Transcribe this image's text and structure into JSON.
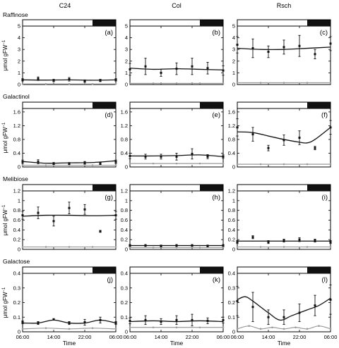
{
  "figure": {
    "columns": [
      "C24",
      "Col",
      "Rsch"
    ],
    "x_label": "Time",
    "y_label_main": "μmol gFW",
    "y_label_sup": "−1",
    "x_ticks": [
      "06:00",
      "14:00",
      "22:00",
      "06:00"
    ],
    "rows": [
      {
        "name": "Raffinose",
        "yticks": [
          "0",
          "1",
          "2",
          "3",
          "4",
          "5"
        ],
        "ylim": [
          0,
          5
        ]
      },
      {
        "name": "Galactinol",
        "yticks": [
          "0",
          "0.4",
          "0.8",
          "1.2",
          "1.6"
        ],
        "ylim": [
          0,
          1.7
        ]
      },
      {
        "name": "Melibiose",
        "yticks": [
          "0",
          "0.2",
          "0.4",
          "0.6",
          "0.8",
          "1",
          "1.2"
        ],
        "ylim": [
          0,
          1.2
        ]
      },
      {
        "name": "Galactose",
        "yticks": [
          "0",
          "0.1",
          "0.2",
          "0.3",
          "0.4"
        ],
        "ylim": [
          0,
          0.4
        ]
      }
    ],
    "colors": {
      "black_series": "#111111",
      "grey_series": "#9a9a9a",
      "dark_bar": "#111111"
    }
  },
  "chart_data": [
    {
      "type": "line",
      "panel": "(a)",
      "row": "Raffinose",
      "column": "C24",
      "x_unit": "hours since 06:00",
      "xlim": [
        0,
        24
      ],
      "ylim": [
        0,
        5
      ],
      "dark_period": [
        18,
        24
      ],
      "points": {
        "x": [
          0,
          4,
          8,
          12,
          16,
          20,
          24
        ],
        "y": [
          0.4,
          0.5,
          0.35,
          0.45,
          0.3,
          0.35,
          0.4
        ],
        "err": [
          0.1,
          0.15,
          0.1,
          0.15,
          0.1,
          0.1,
          0.1
        ]
      },
      "fit": {
        "x": [
          0,
          6,
          12,
          18,
          24
        ],
        "y": [
          0.4,
          0.38,
          0.4,
          0.37,
          0.4
        ]
      },
      "grey": {
        "x": [
          0,
          6,
          12,
          18,
          24
        ],
        "y": [
          0.05,
          0.05,
          0.05,
          0.05,
          0.05
        ]
      }
    },
    {
      "type": "line",
      "panel": "(b)",
      "row": "Raffinose",
      "column": "Col",
      "x_unit": "hours since 06:00",
      "xlim": [
        0,
        24
      ],
      "ylim": [
        0,
        5
      ],
      "dark_period": [
        18,
        24
      ],
      "points": {
        "x": [
          0,
          4,
          8,
          12,
          16,
          20,
          24
        ],
        "y": [
          1.3,
          1.55,
          1.0,
          1.35,
          1.55,
          1.4,
          1.2
        ],
        "err": [
          0.5,
          0.7,
          0.3,
          0.5,
          0.7,
          0.5,
          0.4
        ]
      },
      "fit": {
        "x": [
          0,
          6,
          12,
          18,
          24
        ],
        "y": [
          1.4,
          1.3,
          1.35,
          1.3,
          1.25
        ]
      },
      "grey": {
        "x": [
          0,
          6,
          12,
          18,
          24
        ],
        "y": [
          0.1,
          0.1,
          0.1,
          0.1,
          0.1
        ]
      }
    },
    {
      "type": "line",
      "panel": "(c)",
      "row": "Raffinose",
      "column": "Rsch",
      "x_unit": "hours since 06:00",
      "xlim": [
        0,
        24
      ],
      "ylim": [
        0,
        5
      ],
      "dark_period": [
        18,
        24
      ],
      "points": {
        "x": [
          0,
          4,
          8,
          12,
          16,
          20,
          24
        ],
        "y": [
          3.4,
          3.1,
          2.8,
          3.2,
          3.3,
          2.6,
          3.5
        ],
        "err": [
          0.7,
          0.8,
          0.5,
          0.6,
          0.9,
          0.4,
          0.6
        ]
      },
      "fit": {
        "x": [
          0,
          6,
          12,
          18,
          24
        ],
        "y": [
          3.1,
          3.0,
          3.0,
          3.1,
          3.2
        ]
      },
      "grey": {
        "x": [
          0,
          6,
          12,
          18,
          24
        ],
        "y": [
          0.15,
          0.15,
          0.15,
          0.15,
          0.15
        ]
      }
    },
    {
      "type": "line",
      "panel": "(d)",
      "row": "Galactinol",
      "column": "C24",
      "x_unit": "hours since 06:00",
      "xlim": [
        0,
        24
      ],
      "ylim": [
        0,
        1.7
      ],
      "dark_period": [
        18,
        24
      ],
      "points": {
        "x": [
          0,
          4,
          8,
          12,
          16,
          20,
          24
        ],
        "y": [
          0.15,
          0.15,
          0.1,
          0.1,
          0.12,
          0.1,
          0.15
        ],
        "err": [
          0.05,
          0.06,
          0.03,
          0.03,
          0.04,
          0.03,
          0.05
        ]
      },
      "fit": {
        "x": [
          0,
          6,
          12,
          18,
          24
        ],
        "y": [
          0.16,
          0.11,
          0.12,
          0.13,
          0.18
        ]
      },
      "grey": {
        "x": [
          0,
          6,
          12,
          18,
          24
        ],
        "y": [
          0.05,
          0.05,
          0.05,
          0.05,
          0.05
        ]
      }
    },
    {
      "type": "line",
      "panel": "(e)",
      "row": "Galactinol",
      "column": "Col",
      "x_unit": "hours since 06:00",
      "xlim": [
        0,
        24
      ],
      "ylim": [
        0,
        1.7
      ],
      "dark_period": [
        18,
        24
      ],
      "points": {
        "x": [
          0,
          4,
          8,
          12,
          16,
          20,
          24
        ],
        "y": [
          0.32,
          0.3,
          0.3,
          0.3,
          0.38,
          0.3,
          0.3
        ],
        "err": [
          0.08,
          0.07,
          0.07,
          0.1,
          0.15,
          0.06,
          0.05
        ]
      },
      "fit": {
        "x": [
          0,
          6,
          12,
          18,
          24
        ],
        "y": [
          0.32,
          0.32,
          0.33,
          0.35,
          0.3
        ]
      },
      "grey": {
        "x": [
          0,
          6,
          12,
          18,
          24
        ],
        "y": [
          0.1,
          0.1,
          0.1,
          0.1,
          0.1
        ]
      }
    },
    {
      "type": "line",
      "panel": "(f)",
      "row": "Galactinol",
      "column": "Rsch",
      "x_unit": "hours since 06:00",
      "xlim": [
        0,
        24
      ],
      "ylim": [
        0,
        1.7
      ],
      "dark_period": [
        18,
        24
      ],
      "points": {
        "x": [
          0,
          4,
          8,
          12,
          16,
          20,
          24
        ],
        "y": [
          1.15,
          0.95,
          0.55,
          0.78,
          0.85,
          0.55,
          1.15
        ],
        "err": [
          0.25,
          0.2,
          0.08,
          0.15,
          0.2,
          0.05,
          0.2
        ]
      },
      "fit": {
        "x": [
          0,
          4,
          8,
          12,
          16,
          18,
          20,
          24
        ],
        "y": [
          1.02,
          1.0,
          0.9,
          0.8,
          0.72,
          0.7,
          0.8,
          1.15
        ]
      },
      "grey": {
        "x": [
          0,
          6,
          12,
          18,
          24
        ],
        "y": [
          0.08,
          0.08,
          0.08,
          0.08,
          0.08
        ]
      }
    },
    {
      "type": "line",
      "panel": "(g)",
      "row": "Melibiose",
      "column": "C24",
      "x_unit": "hours since 06:00",
      "xlim": [
        0,
        24
      ],
      "ylim": [
        0,
        1.2
      ],
      "dark_period": [
        18,
        24
      ],
      "points": {
        "x": [
          0,
          4,
          8,
          12,
          16,
          20,
          24
        ],
        "y": [
          0.7,
          0.75,
          0.58,
          0.85,
          0.82,
          0.37,
          0.7
        ],
        "err": [
          0.08,
          0.12,
          0.1,
          0.12,
          0.1,
          0.02,
          0.08
        ]
      },
      "fit": {
        "x": [
          0,
          6,
          12,
          18,
          24
        ],
        "y": [
          0.68,
          0.7,
          0.7,
          0.69,
          0.7
        ]
      },
      "grey": {
        "x": [
          0,
          6,
          12,
          18,
          24
        ],
        "y": [
          0.05,
          0.05,
          0.05,
          0.05,
          0.05
        ]
      }
    },
    {
      "type": "line",
      "panel": "(h)",
      "row": "Melibiose",
      "column": "Col",
      "x_unit": "hours since 06:00",
      "xlim": [
        0,
        24
      ],
      "ylim": [
        0,
        1.2
      ],
      "dark_period": [
        18,
        24
      ],
      "points": {
        "x": [
          0,
          4,
          8,
          12,
          16,
          20,
          24
        ],
        "y": [
          0.08,
          0.08,
          0.07,
          0.08,
          0.08,
          0.07,
          0.08
        ],
        "err": [
          0.02,
          0.02,
          0.02,
          0.02,
          0.02,
          0.02,
          0.02
        ]
      },
      "fit": {
        "x": [
          0,
          6,
          12,
          18,
          24
        ],
        "y": [
          0.08,
          0.08,
          0.08,
          0.08,
          0.08
        ]
      },
      "grey": {
        "x": [
          0,
          6,
          12,
          18,
          24
        ],
        "y": [
          0.04,
          0.04,
          0.04,
          0.04,
          0.04
        ]
      }
    },
    {
      "type": "line",
      "panel": "(i)",
      "row": "Melibiose",
      "column": "Rsch",
      "x_unit": "hours since 06:00",
      "xlim": [
        0,
        24
      ],
      "ylim": [
        0,
        1.2
      ],
      "dark_period": [
        18,
        24
      ],
      "points": {
        "x": [
          0,
          4,
          8,
          12,
          16,
          20,
          24
        ],
        "y": [
          0.15,
          0.25,
          0.15,
          0.18,
          0.2,
          0.18,
          0.15
        ],
        "err": [
          0.03,
          0.03,
          0.03,
          0.03,
          0.04,
          0.03,
          0.03
        ]
      },
      "fit": {
        "x": [
          0,
          6,
          12,
          18,
          24
        ],
        "y": [
          0.17,
          0.17,
          0.17,
          0.17,
          0.17
        ]
      },
      "grey": {
        "x": [
          0,
          6,
          12,
          18,
          24
        ],
        "y": [
          0.05,
          0.05,
          0.05,
          0.05,
          0.05
        ]
      }
    },
    {
      "type": "line",
      "panel": "(j)",
      "row": "Galactose",
      "column": "C24",
      "x_unit": "hours since 06:00",
      "xlim": [
        0,
        24
      ],
      "ylim": [
        0,
        0.4
      ],
      "dark_period": [
        18,
        24
      ],
      "points": {
        "x": [
          0,
          4,
          8,
          12,
          16,
          20,
          24
        ],
        "y": [
          0.065,
          0.06,
          0.085,
          0.06,
          0.065,
          0.08,
          0.06
        ],
        "err": [
          0.01,
          0.01,
          0.005,
          0.01,
          0.02,
          0.02,
          0.01
        ]
      },
      "fit": {
        "x": [
          0,
          4,
          8,
          12,
          16,
          20,
          24
        ],
        "y": [
          0.06,
          0.06,
          0.08,
          0.06,
          0.06,
          0.08,
          0.06
        ]
      },
      "grey": {
        "x": [
          0,
          6,
          12,
          18,
          24
        ],
        "y": [
          0.02,
          0.025,
          0.02,
          0.025,
          0.02
        ]
      }
    },
    {
      "type": "line",
      "panel": "(k)",
      "row": "Galactose",
      "column": "Col",
      "x_unit": "hours since 06:00",
      "xlim": [
        0,
        24
      ],
      "ylim": [
        0,
        0.4
      ],
      "dark_period": [
        18,
        24
      ],
      "points": {
        "x": [
          0,
          4,
          8,
          12,
          16,
          20,
          24
        ],
        "y": [
          0.075,
          0.08,
          0.07,
          0.08,
          0.08,
          0.075,
          0.08
        ],
        "err": [
          0.02,
          0.03,
          0.02,
          0.03,
          0.04,
          0.02,
          0.02
        ]
      },
      "fit": {
        "x": [
          0,
          6,
          12,
          18,
          24
        ],
        "y": [
          0.07,
          0.075,
          0.07,
          0.075,
          0.07
        ]
      },
      "grey": {
        "x": [
          0,
          6,
          12,
          18,
          24
        ],
        "y": [
          0.03,
          0.03,
          0.03,
          0.03,
          0.03
        ]
      }
    },
    {
      "type": "line",
      "panel": "(l)",
      "row": "Galactose",
      "column": "Rsch",
      "x_unit": "hours since 06:00",
      "xlim": [
        0,
        24
      ],
      "ylim": [
        0,
        0.4
      ],
      "dark_period": [
        18,
        24
      ],
      "points": {
        "x": [
          0,
          4,
          8,
          12,
          16,
          20,
          24
        ],
        "y": [
          0.21,
          0.17,
          0.1,
          0.1,
          0.13,
          0.18,
          0.22
        ],
        "err": [
          0.1,
          0.1,
          0.05,
          0.05,
          0.06,
          0.07,
          0.1
        ]
      },
      "fit": {
        "x": [
          0,
          2,
          4,
          8,
          11,
          14,
          18,
          21,
          24
        ],
        "y": [
          0.22,
          0.24,
          0.21,
          0.13,
          0.08,
          0.11,
          0.15,
          0.18,
          0.23
        ]
      },
      "grey": {
        "x": [
          0,
          3,
          6,
          9,
          12,
          15,
          18,
          21,
          24
        ],
        "y": [
          0.02,
          0.04,
          0.02,
          0.03,
          0.02,
          0.03,
          0.02,
          0.04,
          0.02
        ]
      }
    }
  ]
}
